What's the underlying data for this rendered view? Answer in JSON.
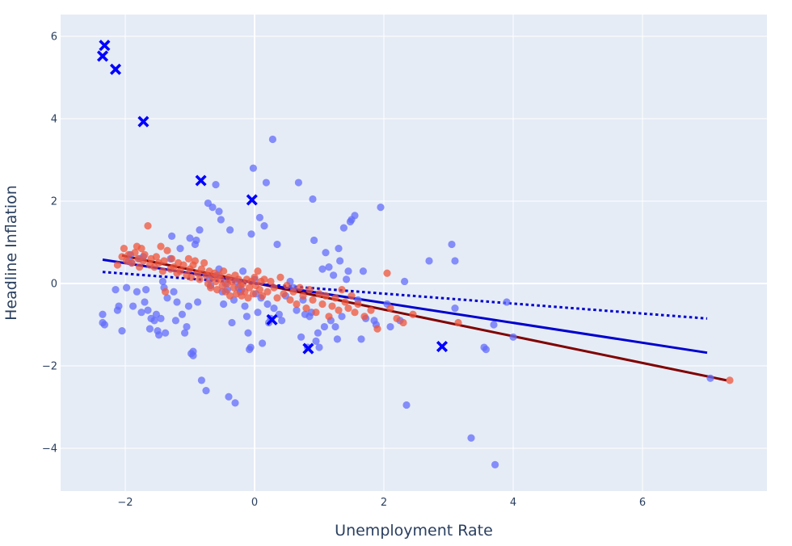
{
  "chart_data": {
    "type": "scatter",
    "xlabel": "Unemployment Rate",
    "ylabel": "Headline Inflation",
    "xlim": [
      -3.0,
      8.0
    ],
    "ylim": [
      -5.0,
      6.6
    ],
    "x_ticks": [
      -2,
      0,
      2,
      4,
      6
    ],
    "y_ticks": [
      -4,
      -2,
      0,
      2,
      4,
      6
    ],
    "x_tick_labels": [
      "−2",
      "0",
      "2",
      "4",
      "6"
    ],
    "y_tick_labels": [
      "−4",
      "−2",
      "0",
      "2",
      "4",
      "6"
    ],
    "grid": true,
    "colors": {
      "plot_bg": "#e5ecf6",
      "grid": "#ffffff",
      "blue_points": "#636efa",
      "red_points": "#ef553b",
      "blue_line": "#0000cd",
      "red_line": "#800000",
      "x_markers": "#0000ff"
    },
    "series": [
      {
        "marker": "circle",
        "color": "#636efa",
        "points": [
          [
            -2.35,
            -0.75
          ],
          [
            -2.35,
            -0.95
          ],
          [
            -2.32,
            -1.0
          ],
          [
            -2.15,
            -0.15
          ],
          [
            -2.12,
            -0.65
          ],
          [
            -2.1,
            -0.55
          ],
          [
            -2.05,
            -1.15
          ],
          [
            -1.98,
            -0.1
          ],
          [
            -1.95,
            0.55
          ],
          [
            -1.92,
            0.7
          ],
          [
            -1.9,
            0.5
          ],
          [
            -1.88,
            -0.55
          ],
          [
            -1.82,
            -0.2
          ],
          [
            -1.78,
            0.6
          ],
          [
            -1.75,
            -0.7
          ],
          [
            -1.72,
            0.65
          ],
          [
            -1.7,
            -0.45
          ],
          [
            -1.68,
            -0.15
          ],
          [
            -1.65,
            -0.65
          ],
          [
            -1.62,
            -1.1
          ],
          [
            -1.6,
            -0.85
          ],
          [
            -1.55,
            -0.9
          ],
          [
            -1.52,
            -0.75
          ],
          [
            -1.5,
            -1.15
          ],
          [
            -1.48,
            -1.25
          ],
          [
            -1.45,
            -0.85
          ],
          [
            -1.42,
            0.05
          ],
          [
            -1.4,
            -0.1
          ],
          [
            -1.38,
            -1.2
          ],
          [
            -1.35,
            -0.35
          ],
          [
            -1.3,
            0.6
          ],
          [
            -1.28,
            1.15
          ],
          [
            -1.25,
            -0.2
          ],
          [
            -1.22,
            -0.9
          ],
          [
            -1.2,
            -0.45
          ],
          [
            -1.15,
            0.85
          ],
          [
            -1.12,
            -0.75
          ],
          [
            -1.08,
            -1.2
          ],
          [
            -1.05,
            -1.05
          ],
          [
            -1.02,
            -0.55
          ],
          [
            -1.0,
            1.1
          ],
          [
            -0.98,
            -1.7
          ],
          [
            -0.95,
            -1.65
          ],
          [
            -0.95,
            -1.75
          ],
          [
            -0.92,
            0.95
          ],
          [
            -0.9,
            1.05
          ],
          [
            -0.88,
            -0.45
          ],
          [
            -0.85,
            1.3
          ],
          [
            -0.82,
            -2.35
          ],
          [
            -0.75,
            -2.6
          ],
          [
            -0.72,
            1.95
          ],
          [
            -0.7,
            0.1
          ],
          [
            -0.68,
            -0.05
          ],
          [
            -0.65,
            1.85
          ],
          [
            -0.6,
            2.4
          ],
          [
            -0.58,
            0.2
          ],
          [
            -0.55,
            0.35
          ],
          [
            -0.55,
            1.75
          ],
          [
            -0.52,
            1.55
          ],
          [
            -0.5,
            -0.2
          ],
          [
            -0.48,
            -0.5
          ],
          [
            -0.45,
            0.0
          ],
          [
            -0.42,
            -0.15
          ],
          [
            -0.4,
            -2.75
          ],
          [
            -0.38,
            1.3
          ],
          [
            -0.35,
            -0.95
          ],
          [
            -0.32,
            -0.4
          ],
          [
            -0.3,
            -2.9
          ],
          [
            -0.28,
            0.05
          ],
          [
            -0.25,
            -0.1
          ],
          [
            -0.22,
            -0.2
          ],
          [
            -0.2,
            -0.15
          ],
          [
            -0.18,
            0.3
          ],
          [
            -0.15,
            -0.55
          ],
          [
            -0.12,
            -0.8
          ],
          [
            -0.1,
            -1.2
          ],
          [
            -0.08,
            -1.6
          ],
          [
            -0.06,
            -1.55
          ],
          [
            -0.05,
            1.2
          ],
          [
            -0.02,
            2.8
          ],
          [
            0.0,
            0.1
          ],
          [
            0.02,
            -0.25
          ],
          [
            0.05,
            -0.7
          ],
          [
            0.08,
            1.6
          ],
          [
            0.1,
            -0.35
          ],
          [
            0.12,
            -1.45
          ],
          [
            0.15,
            1.4
          ],
          [
            0.18,
            2.45
          ],
          [
            0.2,
            -0.5
          ],
          [
            0.22,
            -0.95
          ],
          [
            0.25,
            -0.85
          ],
          [
            0.28,
            3.5
          ],
          [
            0.3,
            -0.6
          ],
          [
            0.35,
            0.95
          ],
          [
            0.38,
            -0.75
          ],
          [
            0.42,
            -0.9
          ],
          [
            0.48,
            -0.3
          ],
          [
            0.55,
            0.05
          ],
          [
            0.6,
            -0.1
          ],
          [
            0.65,
            -0.65
          ],
          [
            0.68,
            2.45
          ],
          [
            0.72,
            -1.3
          ],
          [
            0.75,
            -0.4
          ],
          [
            0.78,
            -0.75
          ],
          [
            0.82,
            -1.55
          ],
          [
            0.85,
            -0.8
          ],
          [
            0.88,
            -0.7
          ],
          [
            0.9,
            2.05
          ],
          [
            0.92,
            1.05
          ],
          [
            0.95,
            -1.4
          ],
          [
            0.98,
            -1.2
          ],
          [
            1.0,
            -1.55
          ],
          [
            1.05,
            0.35
          ],
          [
            1.08,
            -1.05
          ],
          [
            1.1,
            0.75
          ],
          [
            1.15,
            0.4
          ],
          [
            1.18,
            -0.9
          ],
          [
            1.22,
            0.2
          ],
          [
            1.25,
            -1.05
          ],
          [
            1.28,
            -1.35
          ],
          [
            1.3,
            0.85
          ],
          [
            1.32,
            0.55
          ],
          [
            1.35,
            -0.8
          ],
          [
            1.38,
            1.35
          ],
          [
            1.42,
            0.1
          ],
          [
            1.45,
            0.3
          ],
          [
            1.48,
            1.5
          ],
          [
            1.5,
            1.55
          ],
          [
            1.55,
            1.65
          ],
          [
            1.6,
            -0.4
          ],
          [
            1.65,
            -1.35
          ],
          [
            1.68,
            0.3
          ],
          [
            1.72,
            -0.85
          ],
          [
            1.85,
            -0.9
          ],
          [
            1.88,
            -1.0
          ],
          [
            1.95,
            1.85
          ],
          [
            2.05,
            -0.5
          ],
          [
            2.1,
            -1.05
          ],
          [
            2.25,
            -0.9
          ],
          [
            2.32,
            0.05
          ],
          [
            2.35,
            -2.95
          ],
          [
            2.7,
            0.55
          ],
          [
            3.05,
            0.95
          ],
          [
            3.1,
            0.55
          ],
          [
            3.1,
            -0.6
          ],
          [
            3.35,
            -3.75
          ],
          [
            3.55,
            -1.55
          ],
          [
            3.58,
            -1.6
          ],
          [
            3.7,
            -1.0
          ],
          [
            3.72,
            -4.4
          ],
          [
            3.9,
            -0.45
          ],
          [
            4.0,
            -1.3
          ],
          [
            7.05,
            -2.3
          ]
        ]
      },
      {
        "marker": "circle",
        "color": "#ef553b",
        "points": [
          [
            -2.12,
            0.45
          ],
          [
            -2.05,
            0.65
          ],
          [
            -2.02,
            0.85
          ],
          [
            -1.98,
            0.55
          ],
          [
            -1.95,
            0.7
          ],
          [
            -1.9,
            0.5
          ],
          [
            -1.85,
            0.75
          ],
          [
            -1.82,
            0.9
          ],
          [
            -1.8,
            0.6
          ],
          [
            -1.78,
            0.4
          ],
          [
            -1.75,
            0.85
          ],
          [
            -1.72,
            0.55
          ],
          [
            -1.7,
            0.7
          ],
          [
            -1.65,
            1.4
          ],
          [
            -1.62,
            0.45
          ],
          [
            -1.6,
            0.6
          ],
          [
            -1.55,
            0.4
          ],
          [
            -1.52,
            0.65
          ],
          [
            -1.48,
            0.5
          ],
          [
            -1.45,
            0.9
          ],
          [
            -1.42,
            0.3
          ],
          [
            -1.4,
            0.55
          ],
          [
            -1.38,
            -0.2
          ],
          [
            -1.35,
            0.8
          ],
          [
            -1.3,
            0.35
          ],
          [
            -1.28,
            0.6
          ],
          [
            -1.25,
            0.4
          ],
          [
            -1.2,
            0.25
          ],
          [
            -1.18,
            0.5
          ],
          [
            -1.15,
            0.3
          ],
          [
            -1.1,
            0.45
          ],
          [
            -1.05,
            0.2
          ],
          [
            -1.02,
            0.6
          ],
          [
            -1.0,
            0.35
          ],
          [
            -0.98,
            0.15
          ],
          [
            -0.95,
            0.45
          ],
          [
            -0.92,
            0.55
          ],
          [
            -0.88,
            0.25
          ],
          [
            -0.85,
            0.1
          ],
          [
            -0.82,
            0.35
          ],
          [
            -0.78,
            0.5
          ],
          [
            -0.75,
            0.2
          ],
          [
            -0.72,
            0.0
          ],
          [
            -0.7,
            0.3
          ],
          [
            -0.68,
            -0.1
          ],
          [
            -0.65,
            0.15
          ],
          [
            -0.62,
            0.25
          ],
          [
            -0.6,
            0.05
          ],
          [
            -0.58,
            -0.15
          ],
          [
            -0.55,
            0.2
          ],
          [
            -0.52,
            0.1
          ],
          [
            -0.5,
            -0.05
          ],
          [
            -0.48,
            0.3
          ],
          [
            -0.45,
            -0.2
          ],
          [
            -0.42,
            0.0
          ],
          [
            -0.4,
            0.15
          ],
          [
            -0.38,
            -0.3
          ],
          [
            -0.35,
            0.05
          ],
          [
            -0.32,
            -0.1
          ],
          [
            -0.3,
            0.2
          ],
          [
            -0.28,
            -0.25
          ],
          [
            -0.25,
            0.1
          ],
          [
            -0.22,
            -0.05
          ],
          [
            -0.2,
            -0.3
          ],
          [
            -0.18,
            0.0
          ],
          [
            -0.15,
            -0.2
          ],
          [
            -0.12,
            0.1
          ],
          [
            -0.1,
            -0.35
          ],
          [
            -0.08,
            -0.1
          ],
          [
            -0.05,
            0.05
          ],
          [
            -0.02,
            -0.25
          ],
          [
            0.0,
            0.15
          ],
          [
            0.02,
            -0.05
          ],
          [
            0.05,
            0.3
          ],
          [
            0.08,
            -0.15
          ],
          [
            0.1,
            0.05
          ],
          [
            0.12,
            -0.3
          ],
          [
            0.15,
            0.1
          ],
          [
            0.2,
            -0.2
          ],
          [
            0.25,
            0.05
          ],
          [
            0.3,
            -0.1
          ],
          [
            0.35,
            -0.35
          ],
          [
            0.4,
            0.15
          ],
          [
            0.45,
            -0.25
          ],
          [
            0.5,
            -0.05
          ],
          [
            0.55,
            -0.4
          ],
          [
            0.6,
            -0.2
          ],
          [
            0.65,
            -0.5
          ],
          [
            0.7,
            -0.1
          ],
          [
            0.75,
            -0.3
          ],
          [
            0.8,
            -0.6
          ],
          [
            0.85,
            -0.15
          ],
          [
            0.9,
            -0.4
          ],
          [
            0.95,
            -0.7
          ],
          [
            1.0,
            -0.25
          ],
          [
            1.05,
            -0.5
          ],
          [
            1.1,
            -0.3
          ],
          [
            1.15,
            -0.8
          ],
          [
            1.2,
            -0.55
          ],
          [
            1.25,
            -0.35
          ],
          [
            1.3,
            -0.65
          ],
          [
            1.35,
            -0.15
          ],
          [
            1.4,
            -0.45
          ],
          [
            1.45,
            -0.6
          ],
          [
            1.5,
            -0.3
          ],
          [
            1.55,
            -0.7
          ],
          [
            1.6,
            -0.5
          ],
          [
            1.7,
            -0.8
          ],
          [
            1.8,
            -0.65
          ],
          [
            1.9,
            -1.1
          ],
          [
            2.05,
            0.25
          ],
          [
            2.1,
            -0.6
          ],
          [
            2.2,
            -0.85
          ],
          [
            2.3,
            -0.95
          ],
          [
            2.45,
            -0.75
          ],
          [
            3.15,
            -0.95
          ],
          [
            7.35,
            -2.35
          ]
        ]
      },
      {
        "marker": "x",
        "color": "#0000ff",
        "points": [
          [
            -2.35,
            5.52
          ],
          [
            -2.32,
            5.78
          ],
          [
            -2.15,
            5.2
          ],
          [
            -1.72,
            3.93
          ],
          [
            -0.83,
            2.5
          ],
          [
            -0.04,
            2.03
          ],
          [
            0.27,
            -0.88
          ],
          [
            0.83,
            -1.58
          ],
          [
            2.9,
            -1.53
          ]
        ]
      }
    ],
    "lines": [
      {
        "color": "#800000",
        "style": "solid",
        "x": [
          -2.05,
          7.3
        ],
        "y": [
          0.68,
          -2.35
        ]
      },
      {
        "color": "#0000cd",
        "style": "solid",
        "x": [
          -2.35,
          7.0
        ],
        "y": [
          0.58,
          -1.68
        ]
      },
      {
        "color": "#0000cd",
        "style": "dotted",
        "x": [
          -2.35,
          7.0
        ],
        "y": [
          0.28,
          -0.85
        ]
      }
    ]
  }
}
